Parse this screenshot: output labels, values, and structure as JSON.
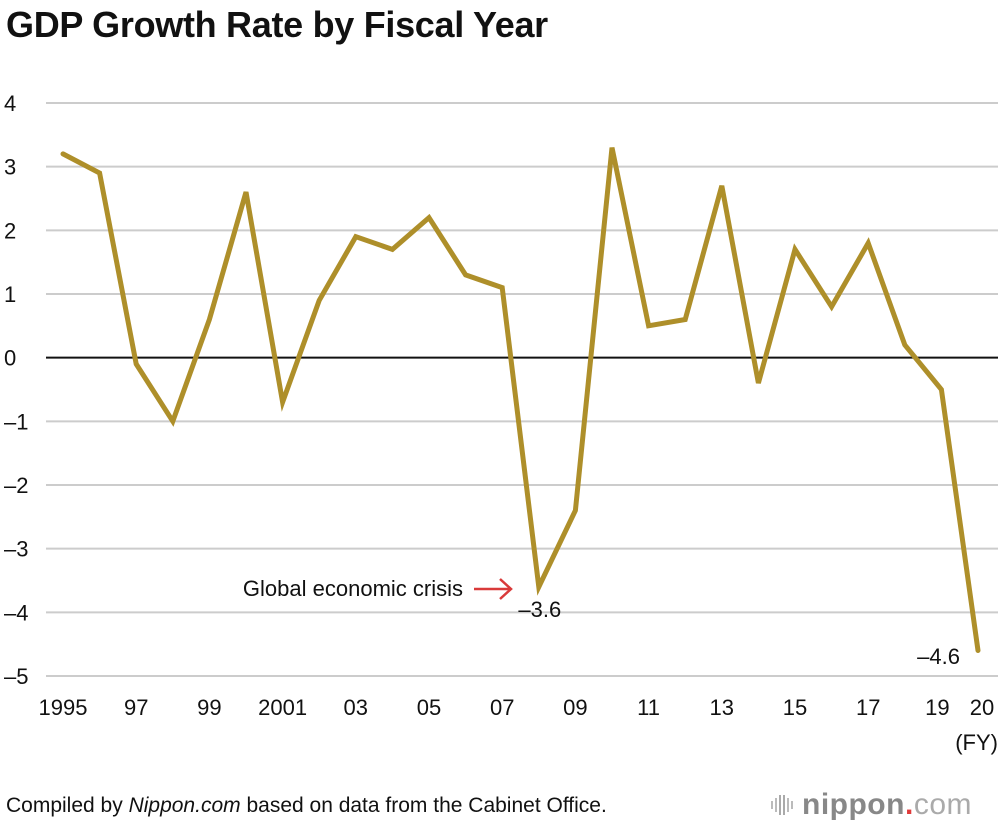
{
  "title": "GDP Growth Rate by Fiscal Year",
  "footer": {
    "prefix": "Compiled by ",
    "italic": "Nippon.com",
    "suffix": " based on data from the Cabinet Office.",
    "logo_main": "nippon",
    "logo_dot": ".",
    "logo_com": "com"
  },
  "colors": {
    "line": "#ae8f2a",
    "arrow": "#d93a3a",
    "grid": "#cccccc",
    "zero": "#111111"
  },
  "chart_data": {
    "type": "line",
    "title": "GDP Growth Rate by Fiscal Year",
    "xlabel": "(FY)",
    "ylabel": "",
    "ylim": [
      -5,
      4
    ],
    "yticks": [
      4,
      3,
      2,
      1,
      0,
      -1,
      -2,
      -3,
      -4,
      -5
    ],
    "ytick_labels": [
      "4",
      "3",
      "2",
      "1",
      "0",
      "–1",
      "–2",
      "–3",
      "–4",
      "–5"
    ],
    "grid": true,
    "x": [
      1995,
      1996,
      1997,
      1998,
      1999,
      2000,
      2001,
      2002,
      2003,
      2004,
      2005,
      2006,
      2007,
      2008,
      2009,
      2010,
      2011,
      2012,
      2013,
      2014,
      2015,
      2016,
      2017,
      2018,
      2019,
      2020
    ],
    "xtick_years": [
      1995,
      1997,
      1999,
      2001,
      2003,
      2005,
      2007,
      2009,
      2011,
      2013,
      2015,
      2017,
      2019,
      2020
    ],
    "xtick_labels": [
      "1995",
      "97",
      "99",
      "2001",
      "03",
      "05",
      "07",
      "09",
      "11",
      "13",
      "15",
      "17",
      "19",
      "20"
    ],
    "series": [
      {
        "name": "GDP growth rate (%)",
        "values": [
          3.2,
          2.9,
          -0.1,
          -1.0,
          0.6,
          2.6,
          -0.7,
          0.9,
          1.9,
          1.7,
          2.2,
          1.3,
          1.1,
          -3.6,
          -2.4,
          3.3,
          0.5,
          0.6,
          2.7,
          -0.4,
          1.7,
          0.8,
          1.8,
          0.2,
          -0.5,
          -4.6
        ]
      }
    ],
    "annotations": [
      {
        "text": "Global economic crisis",
        "x": 2008,
        "y": -3.6,
        "arrow": true
      },
      {
        "text": "–3.6",
        "x": 2008,
        "y": -3.6
      },
      {
        "text": "–4.6",
        "x": 2020,
        "y": -4.6
      }
    ]
  }
}
